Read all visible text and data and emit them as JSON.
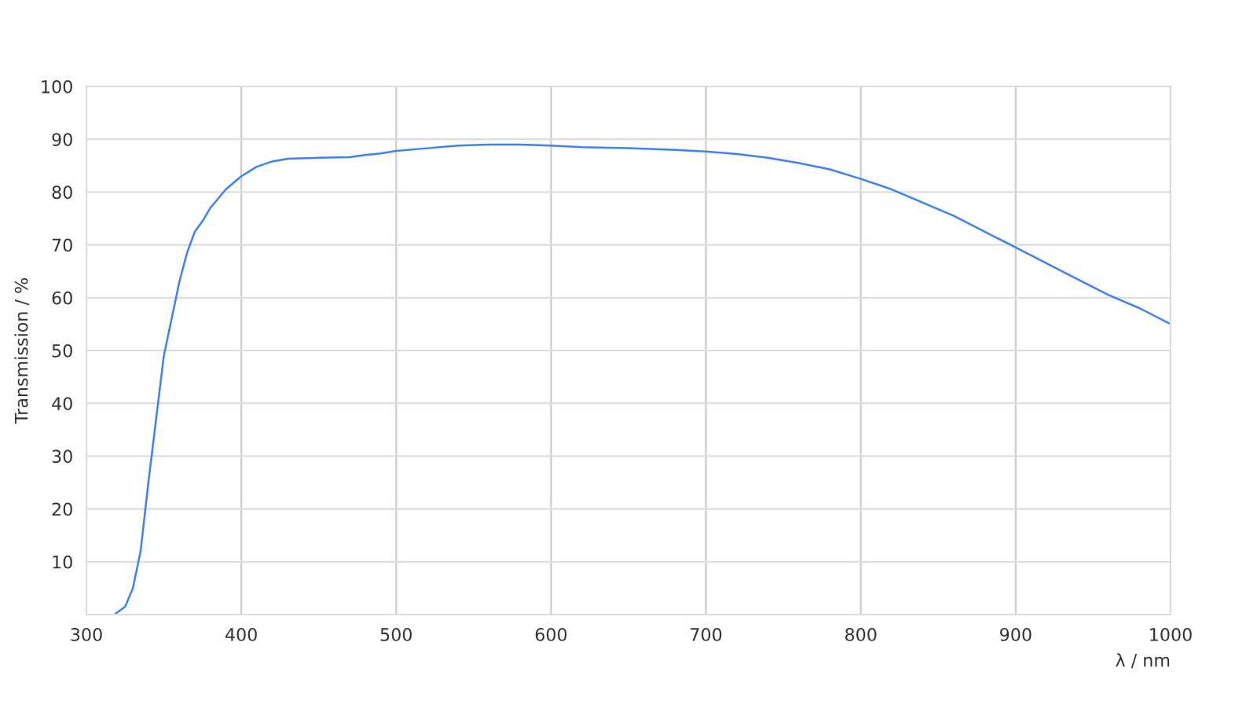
{
  "chart_data": {
    "type": "line",
    "xlabel": "λ / nm",
    "ylabel": "Transmission / %",
    "xlim": [
      300,
      1000
    ],
    "ylim": [
      0,
      100
    ],
    "xticks": [
      300,
      400,
      500,
      600,
      700,
      800,
      900,
      1000
    ],
    "yticks": [
      10,
      20,
      30,
      40,
      50,
      60,
      70,
      80,
      90,
      100
    ],
    "grid": true,
    "marker": "none",
    "line_style": "solid",
    "series": [
      {
        "color": "#3b82f6",
        "x": [
          318,
          325,
          330,
          335,
          340,
          345,
          350,
          355,
          360,
          365,
          370,
          375,
          380,
          390,
          400,
          410,
          420,
          430,
          450,
          470,
          480,
          490,
          500,
          520,
          540,
          560,
          580,
          600,
          620,
          650,
          680,
          700,
          720,
          740,
          760,
          780,
          800,
          820,
          840,
          860,
          880,
          900,
          920,
          940,
          960,
          980,
          1000
        ],
        "values": [
          0,
          1.5,
          5,
          12,
          25,
          37,
          49,
          56,
          63,
          68.5,
          72.5,
          74.5,
          77,
          80.5,
          83,
          84.8,
          85.8,
          86.3,
          86.5,
          86.6,
          87,
          87.3,
          87.8,
          88.3,
          88.8,
          89,
          89,
          88.8,
          88.5,
          88.3,
          88,
          87.7,
          87.2,
          86.5,
          85.5,
          84.3,
          82.5,
          80.5,
          78,
          75.5,
          72.5,
          69.5,
          66.5,
          63.5,
          60.5,
          58,
          55
        ]
      }
    ]
  }
}
